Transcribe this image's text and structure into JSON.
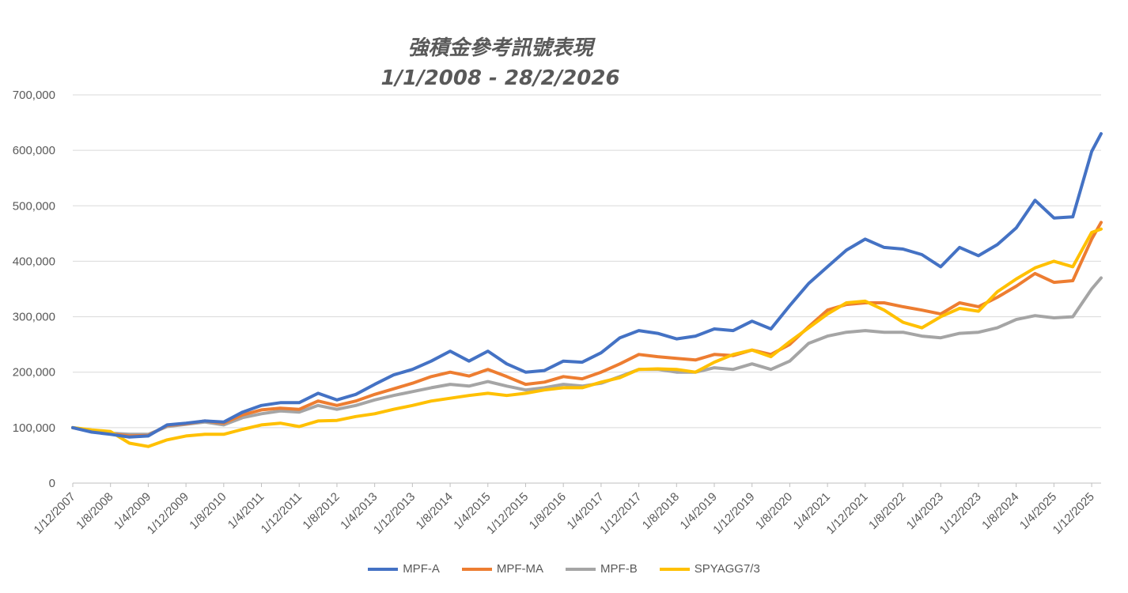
{
  "chart_data": {
    "type": "line",
    "title": "強積金參考訊號表現",
    "subtitle": "1/1/2008 - 28/2/2026",
    "xlabel": "",
    "ylabel": "",
    "ylim": [
      0,
      700000
    ],
    "y_ticks": [
      "0",
      "100,000",
      "200,000",
      "300,000",
      "400,000",
      "500,000",
      "600,000",
      "700,000"
    ],
    "x_ticks": [
      "1/12/2007",
      "1/8/2008",
      "1/4/2009",
      "1/12/2009",
      "1/8/2010",
      "1/4/2011",
      "1/12/2011",
      "1/8/2012",
      "1/4/2013",
      "1/12/2013",
      "1/8/2014",
      "1/4/2015",
      "1/12/2015",
      "1/8/2016",
      "1/4/2017",
      "1/12/2017",
      "1/8/2018",
      "1/4/2019",
      "1/12/2019",
      "1/8/2020",
      "1/4/2021",
      "1/12/2021",
      "1/8/2022",
      "1/4/2023",
      "1/12/2023",
      "1/8/2024",
      "1/4/2025",
      "1/12/2025"
    ],
    "x": [
      "2007-12",
      "2008-04",
      "2008-08",
      "2008-12",
      "2009-04",
      "2009-08",
      "2009-12",
      "2010-04",
      "2010-08",
      "2010-12",
      "2011-04",
      "2011-08",
      "2011-12",
      "2012-04",
      "2012-08",
      "2012-12",
      "2013-04",
      "2013-08",
      "2013-12",
      "2014-04",
      "2014-08",
      "2014-12",
      "2015-04",
      "2015-08",
      "2015-12",
      "2016-04",
      "2016-08",
      "2016-12",
      "2017-04",
      "2017-08",
      "2017-12",
      "2018-04",
      "2018-08",
      "2018-12",
      "2019-04",
      "2019-08",
      "2019-12",
      "2020-04",
      "2020-08",
      "2020-12",
      "2021-04",
      "2021-08",
      "2021-12",
      "2022-04",
      "2022-08",
      "2022-12",
      "2023-04",
      "2023-08",
      "2023-12",
      "2024-04",
      "2024-08",
      "2024-12",
      "2025-04",
      "2025-08",
      "2025-12",
      "2026-02"
    ],
    "series": [
      {
        "name": "MPF-A",
        "color": "#4472C4",
        "values": [
          100000,
          92000,
          88000,
          83000,
          85000,
          105000,
          108000,
          112000,
          110000,
          128000,
          140000,
          145000,
          145000,
          162000,
          150000,
          160000,
          178000,
          195000,
          205000,
          220000,
          238000,
          220000,
          238000,
          215000,
          200000,
          203000,
          220000,
          218000,
          235000,
          262000,
          275000,
          270000,
          260000,
          265000,
          278000,
          275000,
          292000,
          278000,
          320000,
          360000,
          390000,
          420000,
          440000,
          425000,
          422000,
          412000,
          390000,
          425000,
          410000,
          430000,
          460000,
          510000,
          478000,
          480000,
          598000,
          630000
        ]
      },
      {
        "name": "MPF-MA",
        "color": "#ED7D31",
        "values": [
          100000,
          93000,
          89000,
          85000,
          86000,
          104000,
          107000,
          112000,
          108000,
          123000,
          132000,
          135000,
          133000,
          148000,
          140000,
          148000,
          160000,
          170000,
          180000,
          192000,
          200000,
          193000,
          205000,
          192000,
          178000,
          182000,
          192000,
          188000,
          200000,
          215000,
          232000,
          228000,
          225000,
          222000,
          232000,
          230000,
          240000,
          232000,
          250000,
          282000,
          312000,
          322000,
          325000,
          325000,
          318000,
          312000,
          305000,
          325000,
          318000,
          335000,
          355000,
          378000,
          362000,
          365000,
          440000,
          470000
        ]
      },
      {
        "name": "MPF-B",
        "color": "#A5A5A5",
        "values": [
          100000,
          95000,
          90000,
          88000,
          88000,
          102000,
          106000,
          110000,
          105000,
          118000,
          125000,
          130000,
          128000,
          140000,
          133000,
          140000,
          150000,
          158000,
          165000,
          172000,
          178000,
          175000,
          183000,
          175000,
          168000,
          172000,
          178000,
          175000,
          180000,
          192000,
          205000,
          205000,
          200000,
          200000,
          208000,
          205000,
          215000,
          205000,
          220000,
          252000,
          265000,
          272000,
          275000,
          272000,
          272000,
          265000,
          262000,
          270000,
          272000,
          280000,
          295000,
          302000,
          298000,
          300000,
          350000,
          370000
        ]
      },
      {
        "name": "SPYAGG7/3",
        "color": "#FFC000",
        "values": [
          100000,
          96000,
          93000,
          72000,
          66000,
          78000,
          85000,
          88000,
          88000,
          97000,
          105000,
          108000,
          102000,
          112000,
          113000,
          120000,
          125000,
          133000,
          140000,
          148000,
          153000,
          158000,
          162000,
          158000,
          162000,
          168000,
          172000,
          172000,
          182000,
          190000,
          205000,
          206000,
          205000,
          200000,
          218000,
          232000,
          240000,
          228000,
          255000,
          280000,
          305000,
          325000,
          328000,
          312000,
          290000,
          280000,
          300000,
          315000,
          310000,
          345000,
          368000,
          388000,
          400000,
          390000,
          452000,
          458000
        ]
      }
    ],
    "legend_position": "bottom",
    "grid": true
  }
}
